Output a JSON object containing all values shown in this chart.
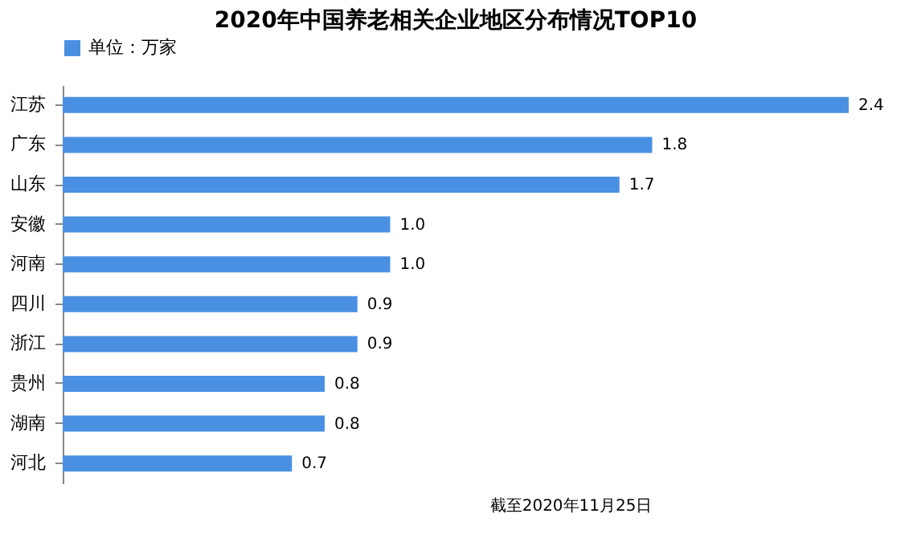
{
  "chart_data": {
    "type": "bar",
    "orientation": "horizontal",
    "title": "2020年中国养老相关企业地区分布情况TOP10",
    "categories": [
      "江苏",
      "广东",
      "山东",
      "安徽",
      "河南",
      "四川",
      "浙江",
      "贵州",
      "湖南",
      "河北"
    ],
    "series": [
      {
        "name": "单位：万家",
        "color": "#4a90e2",
        "values": [
          2.4,
          1.8,
          1.7,
          1.0,
          1.0,
          0.9,
          0.9,
          0.8,
          0.8,
          0.7
        ],
        "value_labels": [
          "2.4",
          "1.8",
          "1.7",
          "1.0",
          "1.0",
          "0.9",
          "0.9",
          "0.8",
          "0.8",
          "0.7"
        ]
      }
    ],
    "legend": "top",
    "annotations": [
      "截至2020年11月25日"
    ]
  }
}
